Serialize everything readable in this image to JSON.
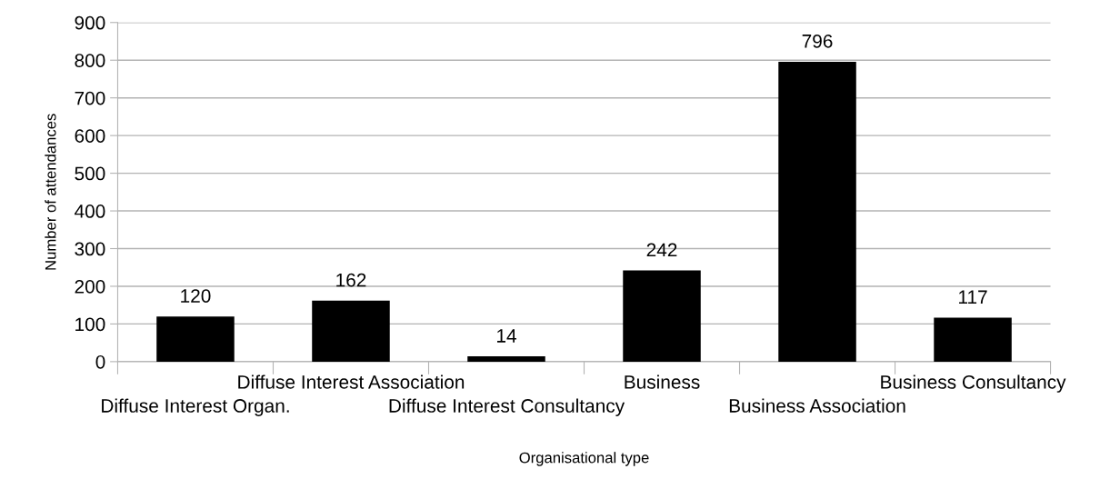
{
  "chart_data": {
    "type": "bar",
    "xlabel": "Organisational type",
    "ylabel": "Number of attendances",
    "categories": [
      "Diffuse Interest Organ.",
      "Diffuse Interest Association",
      "Diffuse Interest Consultancy",
      "Business",
      "Business Association",
      "Business Consultancy"
    ],
    "values": [
      120,
      162,
      14,
      242,
      796,
      117
    ],
    "color": "#000000",
    "ylim": [
      0,
      900
    ],
    "yticks": [
      0,
      100,
      200,
      300,
      400,
      500,
      600,
      700,
      800,
      900
    ],
    "grid": "y",
    "data_labels": true
  }
}
